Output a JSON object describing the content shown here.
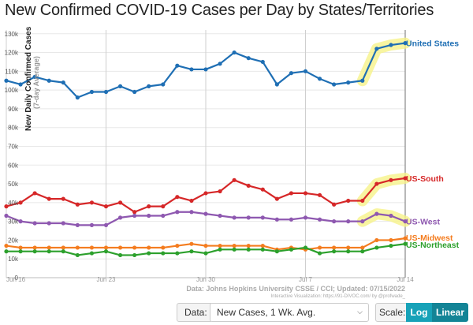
{
  "title": "New Confirmed COVID-19 Cases per Day by States/Territories",
  "source_line1": "Data: Johns Hopkins University CSSE / CCI; Updated: 07/15/2022",
  "source_line2": "Interactive Visualization: https://91-DIVOC.com/ by @profwade_",
  "controls": {
    "data_label": "Data:",
    "data_value": "New Cases, 1 Wk. Avg.",
    "scale_label": "Scale:",
    "log_label": "Log",
    "linear_label": "Linear"
  },
  "chart_data": {
    "type": "line",
    "ylabel": "New Daily Confirmed Cases",
    "ylabel_sub": "(7-day Average)",
    "x_ticks": [
      "Jun 16",
      "Jun 23",
      "Jun 30",
      "Jul 7",
      "Jul 14"
    ],
    "x_tick_days": [
      0,
      7,
      14,
      21,
      28
    ],
    "ylim": [
      0,
      132000
    ],
    "y_ticks": [
      0,
      10000,
      20000,
      30000,
      40000,
      50000,
      60000,
      70000,
      80000,
      90000,
      100000,
      110000,
      120000,
      130000
    ],
    "y_tick_labels": [
      "0",
      "10k",
      "20k",
      "30k",
      "40k",
      "50k",
      "60k",
      "70k",
      "80k",
      "90k",
      "100k",
      "110k",
      "120k",
      "130k"
    ],
    "x_days": [
      0,
      1,
      2,
      3,
      4,
      5,
      6,
      7,
      8,
      9,
      10,
      11,
      12,
      13,
      14,
      15,
      16,
      17,
      18,
      19,
      20,
      21,
      22,
      23,
      24,
      25,
      26,
      27,
      28
    ],
    "highlight_from_day": 25,
    "series": [
      {
        "name": "United States",
        "color": "#1f6fb4",
        "values": [
          105000,
          103000,
          107000,
          105000,
          104000,
          96000,
          99000,
          99000,
          102000,
          99000,
          102000,
          103000,
          113000,
          111000,
          111000,
          114000,
          120000,
          117000,
          115000,
          103000,
          109000,
          110000,
          106000,
          103000,
          104000,
          105000,
          122000,
          124000,
          125000
        ]
      },
      {
        "name": "US-South",
        "color": "#d62728",
        "values": [
          38000,
          40000,
          45000,
          42000,
          42000,
          39000,
          40000,
          38000,
          40000,
          35000,
          38000,
          38000,
          43000,
          41000,
          45000,
          46000,
          52000,
          49000,
          47000,
          42000,
          45000,
          45000,
          44000,
          39000,
          41000,
          41000,
          50000,
          52000,
          53000
        ]
      },
      {
        "name": "US-West",
        "color": "#8e58b0",
        "values": [
          33000,
          30000,
          29000,
          29000,
          29000,
          28000,
          28000,
          28000,
          32000,
          33000,
          33000,
          33000,
          35000,
          35000,
          34000,
          33000,
          32000,
          32000,
          32000,
          31000,
          31000,
          32000,
          31000,
          30000,
          30000,
          30000,
          34000,
          33000,
          30000
        ]
      },
      {
        "name": "US-Midwest",
        "color": "#f47c1f",
        "values": [
          17000,
          16000,
          16000,
          16000,
          16000,
          16000,
          16000,
          16000,
          16000,
          16000,
          16000,
          16000,
          17000,
          18000,
          17000,
          17000,
          17000,
          17000,
          17000,
          15000,
          16000,
          15000,
          16000,
          16000,
          16000,
          16000,
          20000,
          20000,
          21000
        ]
      },
      {
        "name": "US-Northeast",
        "color": "#2ca02c",
        "values": [
          14000,
          14000,
          14000,
          14000,
          14000,
          12000,
          13000,
          14000,
          12000,
          12000,
          13000,
          13000,
          13000,
          14000,
          13000,
          15000,
          15000,
          15000,
          15000,
          14000,
          15000,
          16000,
          13000,
          14000,
          14000,
          14000,
          16000,
          17000,
          18000
        ]
      }
    ]
  }
}
